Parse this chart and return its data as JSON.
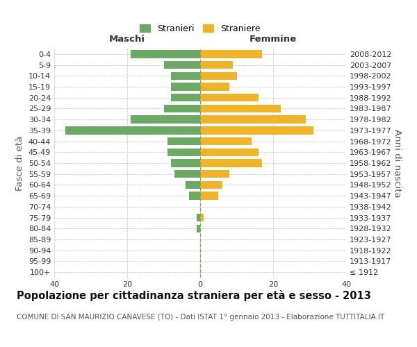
{
  "age_groups": [
    "100+",
    "95-99",
    "90-94",
    "85-89",
    "80-84",
    "75-79",
    "70-74",
    "65-69",
    "60-64",
    "55-59",
    "50-54",
    "45-49",
    "40-44",
    "35-39",
    "30-34",
    "25-29",
    "20-24",
    "15-19",
    "10-14",
    "5-9",
    "0-4"
  ],
  "birth_years": [
    "≤ 1912",
    "1913-1917",
    "1918-1922",
    "1923-1927",
    "1928-1932",
    "1933-1937",
    "1938-1942",
    "1943-1947",
    "1948-1952",
    "1953-1957",
    "1958-1962",
    "1963-1967",
    "1968-1972",
    "1973-1977",
    "1978-1982",
    "1983-1987",
    "1988-1992",
    "1993-1997",
    "1998-2002",
    "2003-2007",
    "2008-2012"
  ],
  "males": [
    0,
    0,
    0,
    0,
    1,
    1,
    0,
    3,
    4,
    7,
    8,
    9,
    9,
    37,
    19,
    10,
    8,
    8,
    8,
    10,
    19
  ],
  "females": [
    0,
    0,
    0,
    0,
    0,
    1,
    0,
    5,
    6,
    8,
    17,
    16,
    14,
    31,
    29,
    22,
    16,
    8,
    10,
    9,
    17
  ],
  "male_color": "#6aaa64",
  "female_color": "#f0b429",
  "background_color": "#ffffff",
  "grid_color": "#cccccc",
  "center_line_color": "#999966",
  "title": "Popolazione per cittadinanza straniera per età e sesso - 2013",
  "subtitle": "COMUNE DI SAN MAURIZIO CANAVESE (TO) - Dati ISTAT 1° gennaio 2013 - Elaborazione TUTTITALIA.IT",
  "left_label": "Maschi",
  "right_label": "Femmine",
  "y_left_label": "Fasce di età",
  "y_right_label": "Anni di nascita",
  "legend_male": "Stranieri",
  "legend_female": "Straniere",
  "xlim": 40,
  "title_fontsize": 10.5,
  "subtitle_fontsize": 7.5,
  "tick_fontsize": 8,
  "label_fontsize": 9.5
}
